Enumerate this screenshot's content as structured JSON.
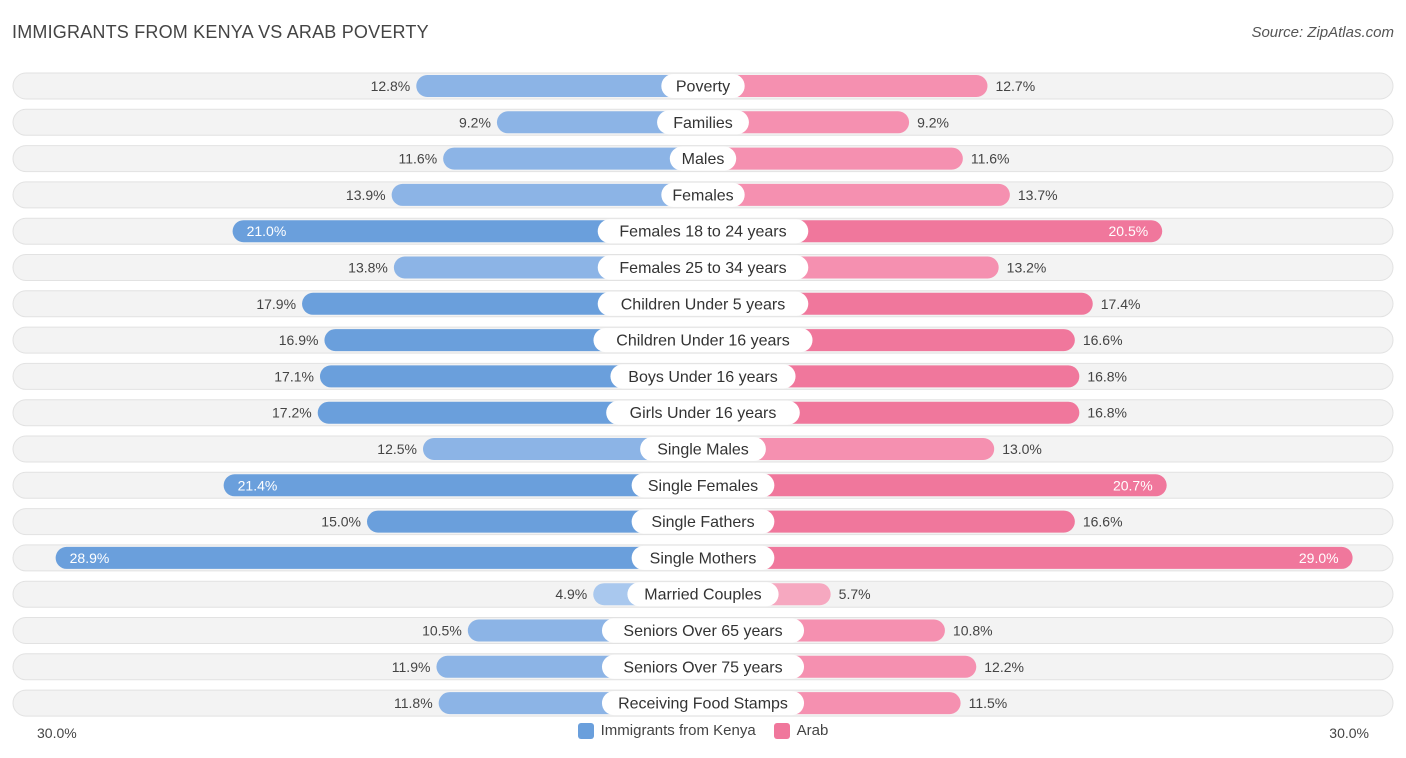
{
  "title": "IMMIGRANTS FROM KENYA VS ARAB POVERTY",
  "source": "Source: ZipAtlas.com",
  "colors": {
    "left_strong": "#6a9fdc",
    "left_light": "#a9c8ee",
    "right_strong": "#f0779c",
    "right_light": "#f6a8c0",
    "track": "#f1f1f1"
  },
  "chart_data": {
    "type": "bar",
    "orientation": "horizontal-diverging",
    "categories": [
      "Poverty",
      "Families",
      "Males",
      "Females",
      "Females 18 to 24 years",
      "Females 25 to 34 years",
      "Children Under 5 years",
      "Children Under 16 years",
      "Boys Under 16 years",
      "Girls Under 16 years",
      "Single Males",
      "Single Females",
      "Single Fathers",
      "Single Mothers",
      "Married Couples",
      "Seniors Over 65 years",
      "Seniors Over 75 years",
      "Receiving Food Stamps"
    ],
    "series": [
      {
        "name": "Immigrants from Kenya",
        "values": [
          12.8,
          9.2,
          11.6,
          13.9,
          21.0,
          13.8,
          17.9,
          16.9,
          17.1,
          17.2,
          12.5,
          21.4,
          15.0,
          28.9,
          4.9,
          10.5,
          11.9,
          11.8
        ],
        "labels": [
          "12.8%",
          "9.2%",
          "11.6%",
          "13.9%",
          "21.0%",
          "13.8%",
          "17.9%",
          "16.9%",
          "17.1%",
          "17.2%",
          "12.5%",
          "21.4%",
          "15.0%",
          "28.9%",
          "4.9%",
          "10.5%",
          "11.9%",
          "11.8%"
        ]
      },
      {
        "name": "Arab",
        "values": [
          12.7,
          9.2,
          11.6,
          13.7,
          20.5,
          13.2,
          17.4,
          16.6,
          16.8,
          16.8,
          13.0,
          20.7,
          16.6,
          29.0,
          5.7,
          10.8,
          12.2,
          11.5
        ],
        "labels": [
          "12.7%",
          "9.2%",
          "11.6%",
          "13.7%",
          "20.5%",
          "13.2%",
          "17.4%",
          "16.6%",
          "16.8%",
          "16.8%",
          "13.0%",
          "20.7%",
          "16.6%",
          "29.0%",
          "5.7%",
          "10.8%",
          "12.2%",
          "11.5%"
        ]
      }
    ],
    "xlim": [
      -30.0,
      30.0
    ],
    "axis_left_label": "30.0%",
    "axis_right_label": "30.0%",
    "legend_position": "bottom-center"
  }
}
